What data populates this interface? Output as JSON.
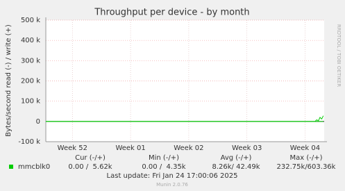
{
  "chart_data": {
    "type": "line",
    "title": "Throughput per device - by month",
    "y_label": "Bytes/second read (-) / write (+)",
    "side_note": "RRDTOOL / TOBI OETIKER",
    "x": [
      0,
      32.4,
      32.6,
      32.8,
      33.0,
      33.2,
      33.4
    ],
    "xlim": [
      0,
      33.5
    ],
    "xticks": [
      {
        "value": 3.2,
        "label": "Week 52"
      },
      {
        "value": 10.2,
        "label": "Week 01"
      },
      {
        "value": 17.2,
        "label": "Week 02"
      },
      {
        "value": 24.2,
        "label": "Week 03"
      },
      {
        "value": 31.2,
        "label": "Week 04"
      }
    ],
    "ylim": [
      -100000,
      500000
    ],
    "yticks": [
      {
        "value": -100000,
        "label": "-100 k"
      },
      0,
      {
        "value": 100000,
        "label": "100 k"
      },
      {
        "value": 200000,
        "label": "200 k"
      },
      {
        "value": 300000,
        "label": "300 k"
      },
      {
        "value": 400000,
        "label": "400 k"
      },
      {
        "value": 500000,
        "label": "500 k"
      }
    ],
    "grid": true,
    "series": [
      {
        "name": "mmcblk0",
        "color": "#00cc00",
        "values": [
          0,
          0,
          8000,
          3000,
          20000,
          12000,
          28000
        ],
        "neg_values": [
          0,
          0,
          0,
          0,
          0,
          0,
          0
        ],
        "stats": [
          "0.00 /  5.62k",
          "0.00 /  4.35k",
          "8.26k/ 42.49k",
          "232.75k/603.36k"
        ]
      }
    ],
    "stat_headers": [
      "Cur (-/+)",
      "Min (-/+)",
      "Avg (-/+)",
      "Max (-/+)"
    ],
    "last_update": "Last update: Fri Jan 24 17:00:06 2025",
    "footer": "Munin 2.0.76"
  }
}
